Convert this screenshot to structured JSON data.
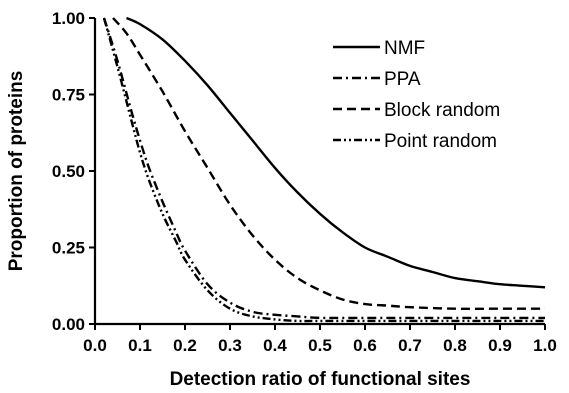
{
  "chart_data": {
    "type": "line",
    "title": "",
    "xlabel": "Detection ratio of functional sites",
    "ylabel": "Proportion of proteins",
    "xlim": [
      0.0,
      1.0
    ],
    "ylim": [
      0.0,
      1.0
    ],
    "xticks": [
      "0.0",
      "0.1",
      "0.2",
      "0.3",
      "0.4",
      "0.5",
      "0.6",
      "0.7",
      "0.8",
      "0.9",
      "1.0"
    ],
    "yticks": [
      "0.00",
      "0.25",
      "0.50",
      "0.75",
      "1.00"
    ],
    "grid": false,
    "legend_position": "top-right",
    "series": [
      {
        "name": "NMF",
        "dash": "solid",
        "x": [
          0.07,
          0.1,
          0.15,
          0.2,
          0.25,
          0.3,
          0.35,
          0.4,
          0.45,
          0.5,
          0.55,
          0.6,
          0.65,
          0.7,
          0.75,
          0.8,
          0.85,
          0.9,
          0.95,
          1.0
        ],
        "y": [
          1.0,
          0.98,
          0.93,
          0.86,
          0.78,
          0.69,
          0.6,
          0.51,
          0.43,
          0.36,
          0.3,
          0.25,
          0.22,
          0.19,
          0.17,
          0.15,
          0.14,
          0.13,
          0.125,
          0.12
        ]
      },
      {
        "name": "PPA",
        "dash": "dash-dot",
        "x": [
          0.02,
          0.05,
          0.08,
          0.1,
          0.12,
          0.15,
          0.18,
          0.2,
          0.25,
          0.3,
          0.35,
          0.4,
          0.45,
          0.5,
          0.6,
          0.7,
          0.8,
          0.9,
          1.0
        ],
        "y": [
          1.0,
          0.86,
          0.7,
          0.6,
          0.51,
          0.4,
          0.3,
          0.24,
          0.13,
          0.07,
          0.04,
          0.03,
          0.025,
          0.02,
          0.02,
          0.02,
          0.02,
          0.02,
          0.02
        ]
      },
      {
        "name": "Block random",
        "dash": "dashed",
        "x": [
          0.04,
          0.07,
          0.1,
          0.15,
          0.2,
          0.25,
          0.3,
          0.35,
          0.4,
          0.45,
          0.5,
          0.55,
          0.6,
          0.65,
          0.7,
          0.8,
          0.9,
          1.0
        ],
        "y": [
          1.0,
          0.95,
          0.88,
          0.76,
          0.63,
          0.51,
          0.39,
          0.29,
          0.21,
          0.15,
          0.11,
          0.08,
          0.065,
          0.06,
          0.055,
          0.05,
          0.05,
          0.05
        ]
      },
      {
        "name": "Point random",
        "dash": "dash-dot-dot",
        "x": [
          0.02,
          0.05,
          0.08,
          0.1,
          0.12,
          0.15,
          0.18,
          0.2,
          0.25,
          0.3,
          0.35,
          0.4,
          0.45,
          0.5,
          0.6,
          0.7,
          0.8,
          0.9,
          1.0
        ],
        "y": [
          1.0,
          0.84,
          0.67,
          0.56,
          0.47,
          0.36,
          0.27,
          0.21,
          0.11,
          0.05,
          0.025,
          0.015,
          0.01,
          0.01,
          0.01,
          0.01,
          0.01,
          0.01,
          0.01
        ]
      }
    ]
  }
}
